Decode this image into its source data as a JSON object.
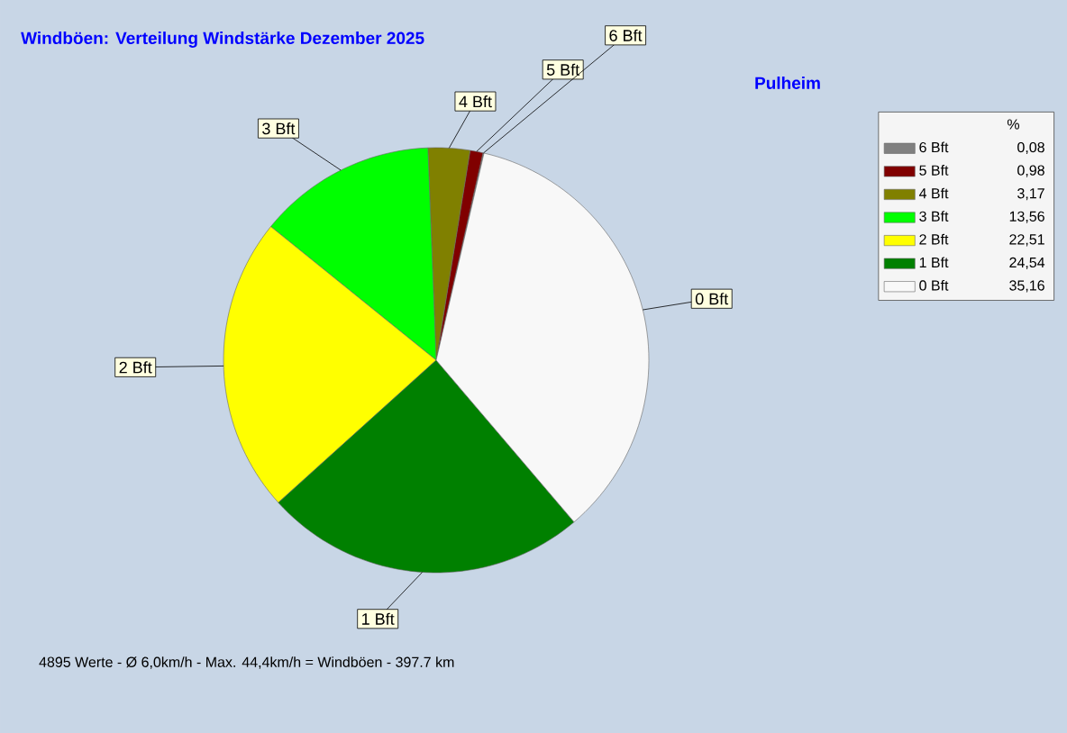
{
  "chart_data": {
    "type": "pie",
    "title": "Windböen: Verteilung Windstärke  Dezember 2025",
    "subtitle": "Pulheim",
    "categories": [
      "6 Bft",
      "5 Bft",
      "4 Bft",
      "3 Bft",
      "2 Bft",
      "1 Bft",
      "0 Bft"
    ],
    "values": [
      0.08,
      0.98,
      3.17,
      13.56,
      22.51,
      24.54,
      35.16
    ],
    "value_labels": [
      "0,08",
      "0,98",
      "3,17",
      "13,56",
      "22,51",
      "24,54",
      "35,16"
    ],
    "colors": [
      "#808080",
      "#800000",
      "#808000",
      "#00ff00",
      "#ffff00",
      "#008000",
      "#f8f8f8"
    ],
    "legend": "right",
    "legend_title": "%",
    "annotations": [
      "4895 Werte   -   Ø 6,0km/h  -  Max. 44,4km/h = Windböen   -   397.7 km"
    ]
  }
}
